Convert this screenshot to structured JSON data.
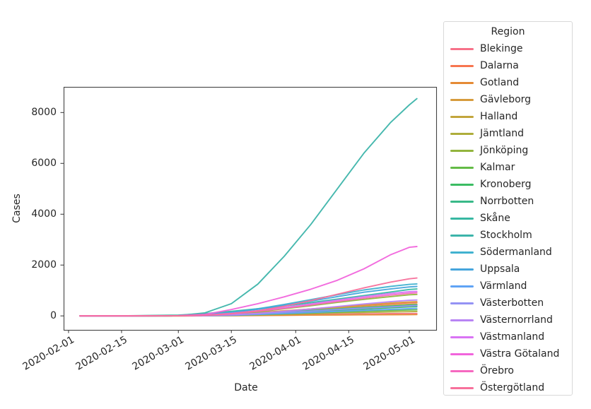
{
  "legend": {
    "title": "Region"
  },
  "axes": {
    "xlabel": "Date",
    "ylabel": "Cases",
    "x_tick_labels": [
      "2020-02-01",
      "2020-02-15",
      "2020-03-01",
      "2020-03-15",
      "2020-04-01",
      "2020-04-15",
      "2020-05-01"
    ],
    "y_tick_labels": [
      "0",
      "2000",
      "4000",
      "6000",
      "8000"
    ]
  },
  "style_colors": {
    "background": "#ffffff",
    "text": "#262626",
    "spine": "#444444",
    "legend_border": "#d9d9d9"
  },
  "chart_data": {
    "type": "line",
    "title": "",
    "xlabel": "Date",
    "ylabel": "Cases",
    "legend_title": "Region",
    "legend_position": "right-outside",
    "grid": false,
    "x_epoch": "2020-02-01",
    "xlim_days": [
      -1.3,
      97.1
    ],
    "ylim": [
      -550,
      9010
    ],
    "x_tick_labels": [
      "2020-02-01",
      "2020-02-15",
      "2020-03-01",
      "2020-03-15",
      "2020-04-01",
      "2020-04-15",
      "2020-05-01"
    ],
    "y_ticks": [
      0,
      2000,
      4000,
      6000,
      8000
    ],
    "x_dates": [
      "2020-02-04",
      "2020-02-15",
      "2020-03-01",
      "2020-03-08",
      "2020-03-15",
      "2020-03-22",
      "2020-03-29",
      "2020-04-05",
      "2020-04-12",
      "2020-04-19",
      "2020-04-26",
      "2020-05-01",
      "2020-05-03"
    ],
    "series": [
      {
        "name": "Blekinge",
        "color": "#f77189",
        "values": [
          0,
          0,
          1,
          4,
          12,
          25,
          40,
          55,
          68,
          78,
          88,
          94,
          96
        ]
      },
      {
        "name": "Dalarna",
        "color": "#f7754f",
        "values": [
          0,
          0,
          5,
          25,
          70,
          130,
          200,
          270,
          340,
          410,
          470,
          515,
          525
        ]
      },
      {
        "name": "Gotland",
        "color": "#e58a35",
        "values": [
          0,
          0,
          1,
          3,
          8,
          15,
          22,
          30,
          37,
          43,
          48,
          51,
          52
        ]
      },
      {
        "name": "Gävleborg",
        "color": "#d79b3c",
        "values": [
          0,
          0,
          3,
          15,
          50,
          110,
          190,
          270,
          350,
          430,
          505,
          550,
          560
        ]
      },
      {
        "name": "Halland",
        "color": "#c2a53c",
        "values": [
          0,
          1,
          8,
          30,
          70,
          120,
          180,
          240,
          300,
          360,
          415,
          455,
          465
        ]
      },
      {
        "name": "Jämtland",
        "color": "#aead3b",
        "values": [
          0,
          0,
          1,
          5,
          20,
          40,
          65,
          90,
          115,
          135,
          155,
          168,
          172
        ]
      },
      {
        "name": "Jönköping",
        "color": "#92b43d",
        "values": [
          0,
          0,
          4,
          25,
          80,
          160,
          280,
          400,
          530,
          650,
          760,
          830,
          845
        ]
      },
      {
        "name": "Kalmar",
        "color": "#64bb47",
        "values": [
          0,
          0,
          2,
          8,
          25,
          50,
          80,
          115,
          150,
          185,
          215,
          235,
          240
        ]
      },
      {
        "name": "Kronoberg",
        "color": "#3bbc62",
        "values": [
          0,
          0,
          2,
          8,
          30,
          70,
          120,
          170,
          220,
          270,
          320,
          355,
          365
        ]
      },
      {
        "name": "Norrbotten",
        "color": "#39b988",
        "values": [
          0,
          0,
          2,
          10,
          40,
          90,
          150,
          210,
          270,
          330,
          385,
          425,
          435
        ]
      },
      {
        "name": "Skåne",
        "color": "#37b8a2",
        "values": [
          0,
          2,
          30,
          90,
          180,
          280,
          390,
          520,
          660,
          800,
          940,
          1040,
          1060
        ]
      },
      {
        "name": "Stockholm",
        "color": "#3cb4aa",
        "values": [
          0,
          2,
          15,
          120,
          480,
          1250,
          2350,
          3600,
          5000,
          6400,
          7600,
          8300,
          8550
        ]
      },
      {
        "name": "Södermanland",
        "color": "#41b2d0",
        "values": [
          0,
          0,
          8,
          40,
          130,
          280,
          450,
          640,
          830,
          1020,
          1160,
          1240,
          1260
        ]
      },
      {
        "name": "Uppsala",
        "color": "#46a5dc",
        "values": [
          0,
          1,
          12,
          50,
          140,
          260,
          420,
          580,
          760,
          930,
          1060,
          1140,
          1160
        ]
      },
      {
        "name": "Värmland",
        "color": "#60a3f5",
        "values": [
          0,
          0,
          2,
          8,
          25,
          55,
          95,
          135,
          180,
          220,
          260,
          285,
          295
        ]
      },
      {
        "name": "Västerbotten",
        "color": "#9492f4",
        "values": [
          0,
          0,
          3,
          15,
          45,
          90,
          140,
          190,
          250,
          305,
          355,
          395,
          405
        ]
      },
      {
        "name": "Västernorrland",
        "color": "#b884f4",
        "values": [
          0,
          0,
          2,
          10,
          40,
          100,
          180,
          270,
          370,
          470,
          560,
          615,
          625
        ]
      },
      {
        "name": "Västmanland",
        "color": "#d973f4",
        "values": [
          0,
          0,
          5,
          30,
          100,
          200,
          330,
          470,
          620,
          760,
          880,
          950,
          965
        ]
      },
      {
        "name": "Västra Götaland",
        "color": "#f164dc",
        "values": [
          0,
          1,
          10,
          60,
          250,
          480,
          750,
          1050,
          1400,
          1850,
          2400,
          2700,
          2730
        ]
      },
      {
        "name": "Örebro",
        "color": "#f669c0",
        "values": [
          0,
          0,
          3,
          20,
          80,
          180,
          300,
          430,
          570,
          700,
          820,
          890,
          905
        ]
      },
      {
        "name": "Östergötland",
        "color": "#f7709b",
        "values": [
          0,
          0,
          5,
          25,
          90,
          200,
          380,
          600,
          850,
          1100,
          1330,
          1460,
          1490
        ]
      }
    ]
  }
}
